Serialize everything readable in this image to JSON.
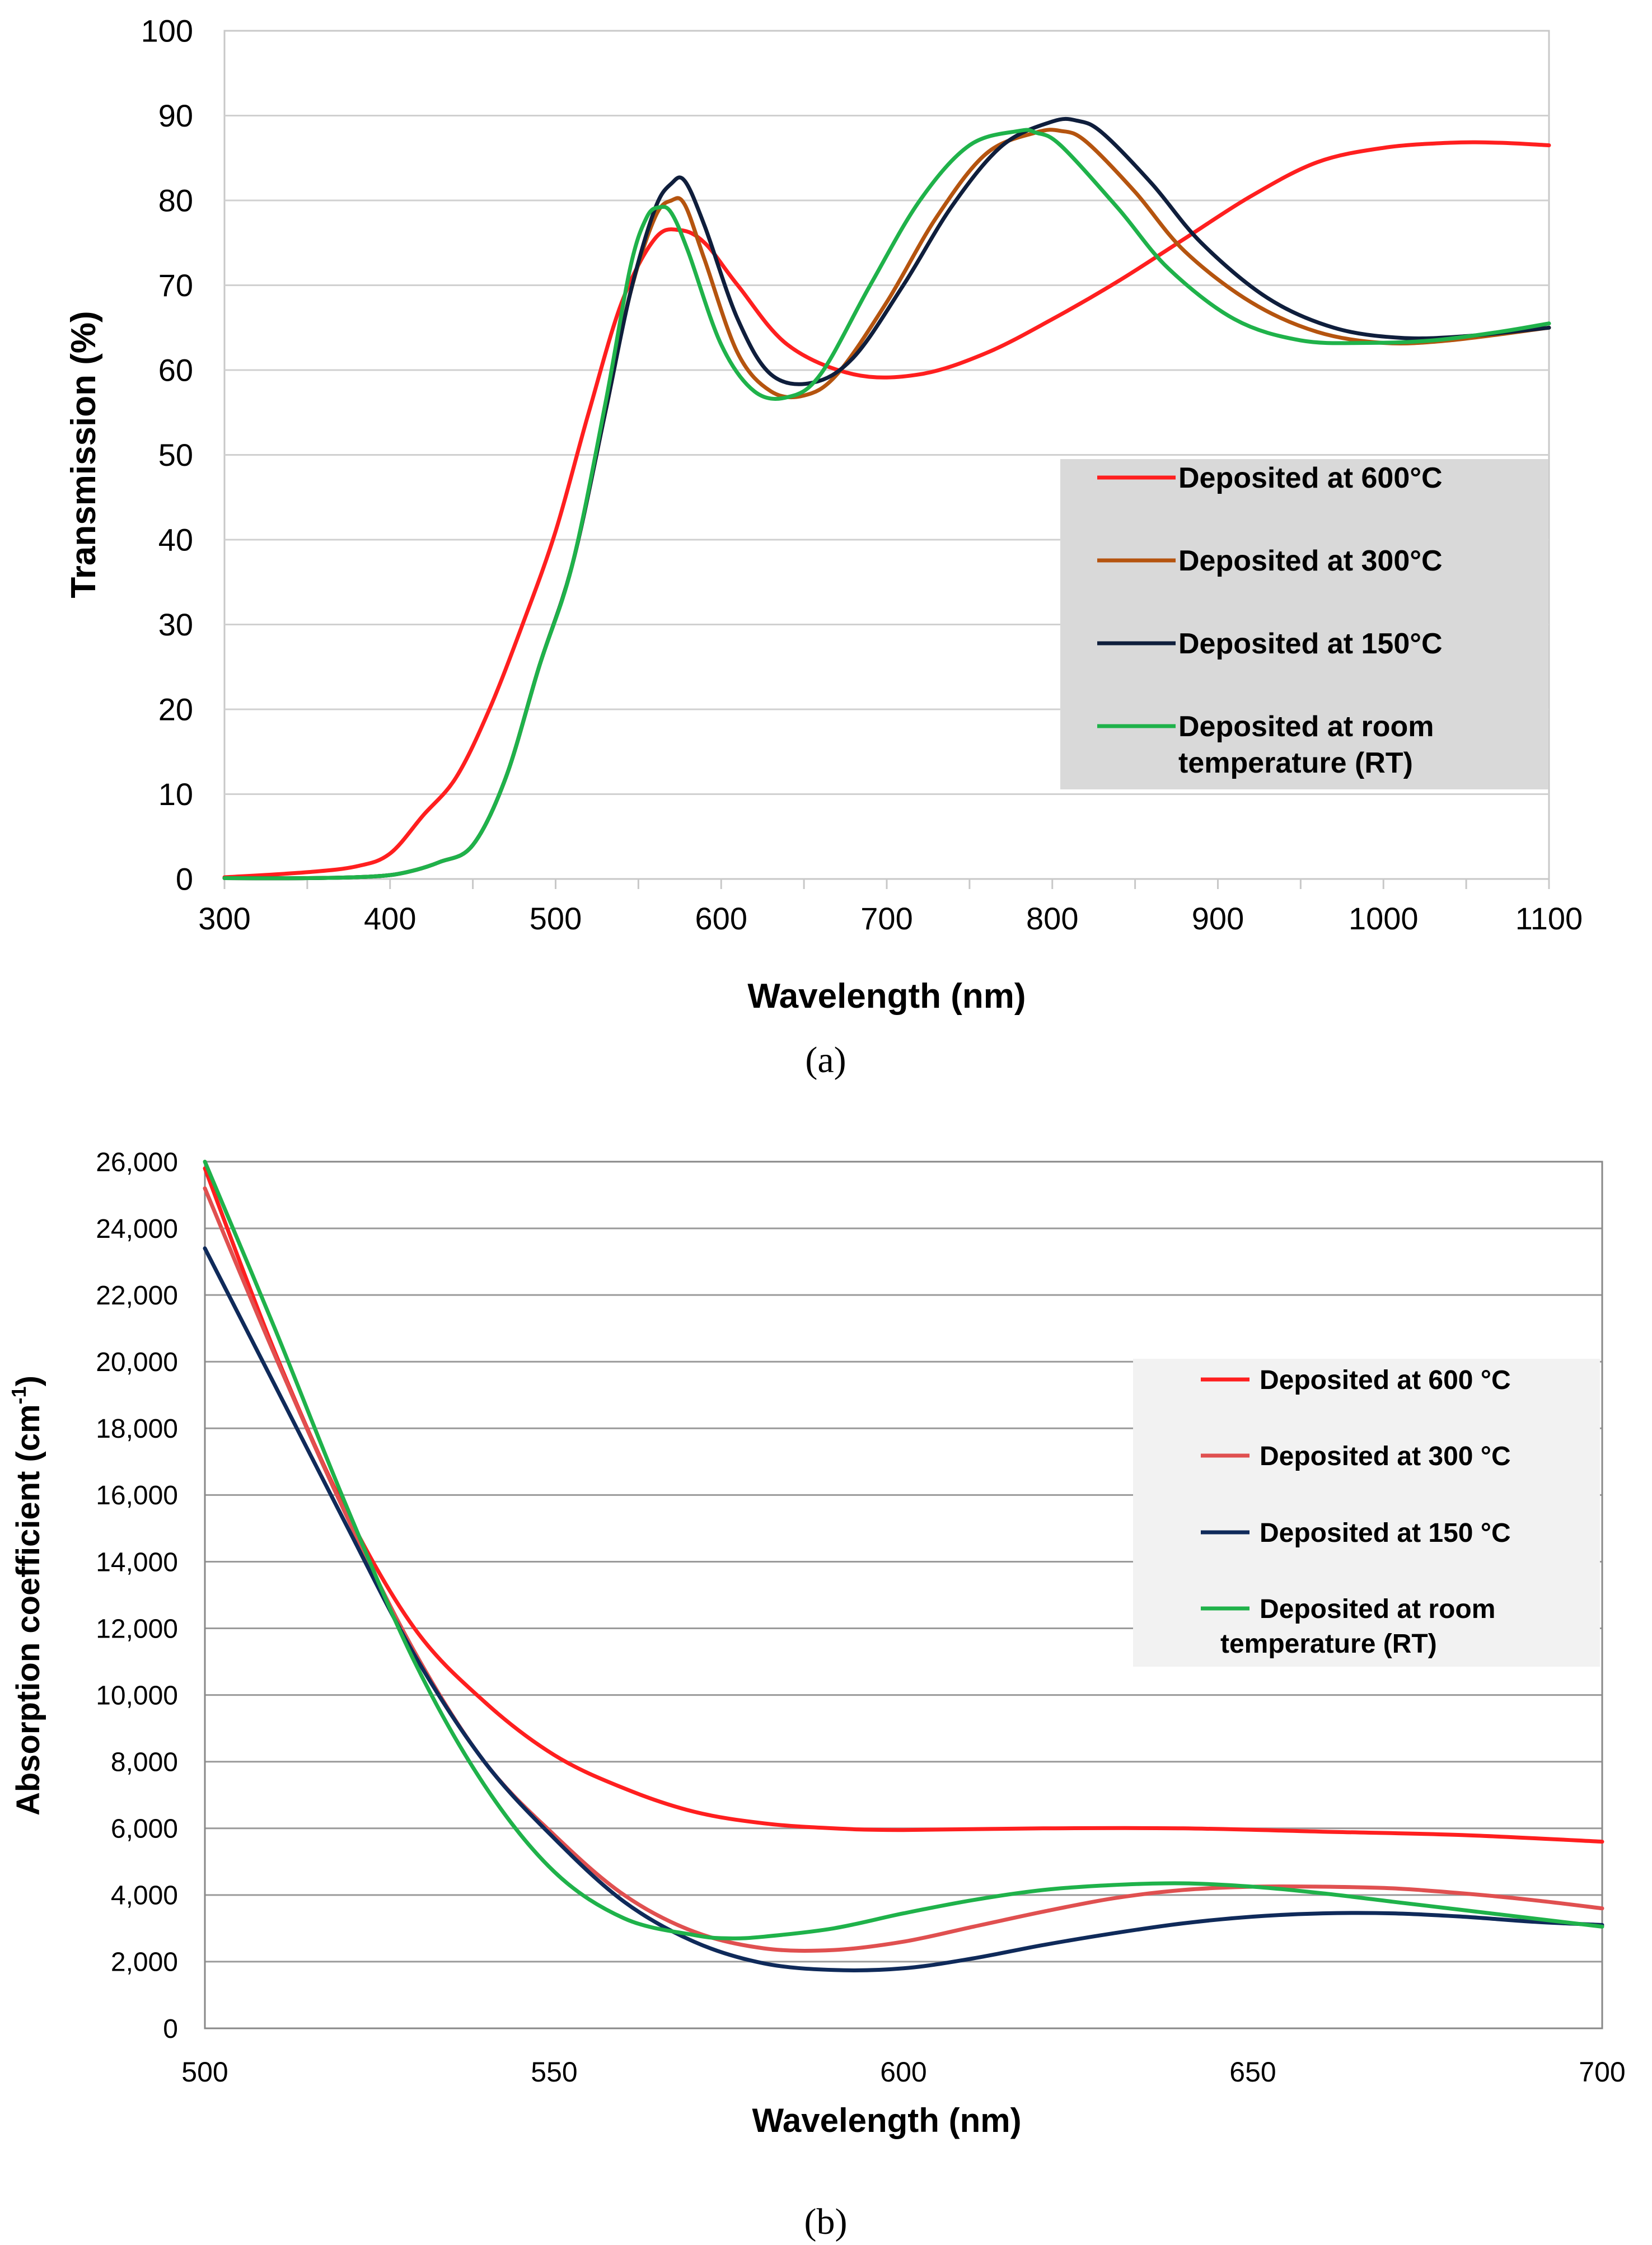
{
  "chart_data": [
    {
      "type": "line",
      "panel_label": "(a)",
      "xlabel": "Wavelength (nm)",
      "ylabel": "Transmission (%)",
      "xlim": [
        300,
        1100
      ],
      "ylim": [
        0,
        100
      ],
      "xticks": [
        300,
        400,
        500,
        600,
        700,
        800,
        900,
        1000,
        1100
      ],
      "yticks": [
        0,
        10,
        20,
        30,
        40,
        50,
        60,
        70,
        80,
        90,
        100
      ],
      "grid": "horizontal",
      "legend": "right",
      "legend_bg": "#d9d9d9",
      "series": [
        {
          "name": "Deposited at 600°C",
          "color": "#ff1f1f",
          "x": [
            300,
            350,
            380,
            400,
            420,
            440,
            460,
            480,
            500,
            520,
            540,
            560,
            575,
            590,
            610,
            640,
            680,
            720,
            760,
            800,
            840,
            880,
            920,
            960,
            1000,
            1040,
            1070,
            1100
          ],
          "y": [
            0.2,
            0.8,
            1.5,
            3,
            7.5,
            12,
            20,
            30,
            41,
            55,
            68,
            75.5,
            76.5,
            75,
            70,
            63,
            59.5,
            59.5,
            62,
            66,
            70.5,
            75.5,
            80.5,
            84.5,
            86.2,
            86.8,
            86.8,
            86.5
          ]
        },
        {
          "name": "Deposited at 300°C",
          "color": "#b5540f",
          "x": [
            300,
            350,
            390,
            410,
            430,
            450,
            470,
            490,
            510,
            530,
            545,
            560,
            570,
            578,
            590,
            610,
            630,
            650,
            670,
            700,
            730,
            760,
            790,
            805,
            820,
            850,
            880,
            920,
            960,
            1000,
            1040,
            1100
          ],
          "y": [
            0.1,
            0.1,
            0.3,
            0.8,
            2,
            4,
            12,
            25,
            37,
            55,
            69,
            78,
            80,
            79.5,
            73,
            62,
            57.5,
            57,
            59.5,
            68,
            78,
            85.5,
            88,
            88.2,
            87,
            81,
            74,
            68,
            64.5,
            63.2,
            63.5,
            65
          ]
        },
        {
          "name": "Deposited at 150°C",
          "color": "#0f1e3c",
          "x": [
            300,
            350,
            390,
            410,
            430,
            450,
            470,
            490,
            510,
            530,
            545,
            560,
            570,
            578,
            590,
            610,
            630,
            655,
            680,
            710,
            740,
            770,
            800,
            815,
            830,
            860,
            890,
            930,
            970,
            1010,
            1050,
            1100
          ],
          "y": [
            0.1,
            0.1,
            0.3,
            0.8,
            2,
            4,
            12,
            25,
            37,
            55,
            69,
            79,
            82,
            82.3,
            77,
            66,
            59.5,
            58.5,
            61.5,
            70,
            79.5,
            86.5,
            89.3,
            89.4,
            88,
            82,
            75,
            68.5,
            65,
            63.8,
            64,
            65
          ]
        },
        {
          "name": "Deposited at room temperature (RT)",
          "color": "#1fb24a",
          "x": [
            300,
            350,
            390,
            410,
            430,
            450,
            470,
            490,
            510,
            530,
            545,
            555,
            563,
            570,
            580,
            600,
            620,
            640,
            660,
            690,
            720,
            750,
            780,
            790,
            805,
            840,
            870,
            910,
            950,
            990,
            1030,
            1070,
            1100
          ],
          "y": [
            0.1,
            0.1,
            0.3,
            0.8,
            2,
            4,
            12,
            25,
            37,
            56,
            72,
            78,
            79.2,
            78.5,
            74,
            63,
            57.5,
            56.8,
            59.5,
            70,
            80,
            86.5,
            88.2,
            88,
            86.5,
            79,
            72,
            66,
            63.5,
            63.2,
            63.5,
            64.5,
            65.5
          ]
        }
      ]
    },
    {
      "type": "line",
      "panel_label": "(b)",
      "xlabel": "Wavelength (nm)",
      "ylabel_main": "Absorption coefficient (cm",
      "ylabel_sup": "-1",
      "ylabel_end": ")",
      "xlim": [
        500,
        700
      ],
      "ylim": [
        0,
        26000
      ],
      "xticks": [
        500,
        550,
        600,
        650,
        700
      ],
      "xtick_labels": [
        "500",
        "550",
        "600",
        "650",
        "700"
      ],
      "yticks": [
        0,
        2000,
        4000,
        6000,
        8000,
        10000,
        12000,
        14000,
        16000,
        18000,
        20000,
        22000,
        24000,
        26000
      ],
      "ytick_labels": [
        "0",
        "2,000",
        "4,000",
        "6,000",
        "8,000",
        "10,000",
        "12,000",
        "14,000",
        "16,000",
        "18,000",
        "20,000",
        "22,000",
        "24,000",
        "26,000"
      ],
      "grid": "horizontal",
      "legend": "right",
      "legend_bg": "#f2f2f2",
      "series": [
        {
          "name": "Deposited at 600 °C",
          "color": "#ff1f1f",
          "x": [
            500,
            510,
            520,
            530,
            540,
            550,
            560,
            570,
            580,
            590,
            600,
            620,
            640,
            660,
            680,
            700
          ],
          "y": [
            25800,
            20300,
            15600,
            12000,
            9800,
            8200,
            7200,
            6500,
            6150,
            6000,
            5950,
            6000,
            6000,
            5900,
            5800,
            5600
          ]
        },
        {
          "name": "Deposited at 300 °C",
          "color": "#e05050",
          "x": [
            500,
            510,
            520,
            530,
            540,
            550,
            560,
            570,
            580,
            590,
            600,
            610,
            620,
            630,
            640,
            650,
            660,
            670,
            680,
            690,
            700
          ],
          "y": [
            25200,
            20200,
            15500,
            11300,
            8000,
            5800,
            4000,
            2900,
            2400,
            2350,
            2600,
            3050,
            3500,
            3900,
            4150,
            4250,
            4250,
            4200,
            4050,
            3850,
            3600
          ]
        },
        {
          "name": "Deposited at 150 °C",
          "color": "#0f2a5a",
          "x": [
            500,
            510,
            520,
            530,
            540,
            550,
            560,
            570,
            580,
            590,
            600,
            610,
            620,
            630,
            640,
            650,
            660,
            670,
            680,
            690,
            700
          ],
          "y": [
            23400,
            19300,
            15200,
            11200,
            8000,
            5700,
            3800,
            2600,
            1950,
            1750,
            1800,
            2100,
            2500,
            2850,
            3150,
            3350,
            3450,
            3450,
            3350,
            3200,
            3100
          ]
        },
        {
          "name": "Deposited at room temperature (RT)",
          "color": "#1fb24a",
          "x": [
            500,
            510,
            520,
            530,
            540,
            550,
            560,
            570,
            575,
            580,
            590,
            600,
            610,
            620,
            630,
            640,
            650,
            660,
            670,
            680,
            690,
            700
          ],
          "y": [
            26000,
            21000,
            15800,
            11000,
            7300,
            4700,
            3300,
            2800,
            2700,
            2750,
            3000,
            3450,
            3850,
            4150,
            4300,
            4350,
            4250,
            4050,
            3800,
            3550,
            3300,
            3050
          ]
        }
      ]
    }
  ]
}
